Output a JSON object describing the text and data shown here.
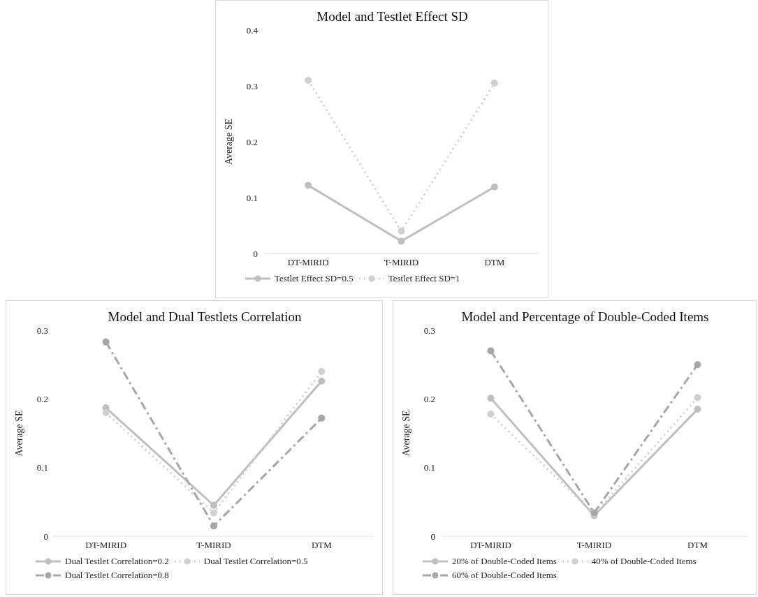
{
  "chart_data": [
    {
      "type": "line",
      "title": "Model and Testlet Effect SD",
      "ylabel": "Average SE",
      "categories": [
        "DT-MIRID",
        "T-MIRID",
        "DTM"
      ],
      "ylim": [
        0,
        0.4
      ],
      "yticks": [
        0,
        0.1,
        0.2,
        0.3,
        0.4
      ],
      "legend": "bottom",
      "marker": "circle",
      "series": [
        {
          "name": "Testlet Effect SD=0.5",
          "color": "#bfbfbf",
          "line_style": "solid",
          "values": [
            0.122,
            0.022,
            0.119
          ]
        },
        {
          "name": "Testlet Effect SD=1",
          "color": "#d0d0d0",
          "line_style": "dotted",
          "values": [
            0.31,
            0.04,
            0.305
          ]
        }
      ]
    },
    {
      "type": "line",
      "title": "Model and Dual Testlets Correlation",
      "ylabel": "Average SE",
      "categories": [
        "DT-MIRID",
        "T-MIRID",
        "DTM"
      ],
      "ylim": [
        0,
        0.3
      ],
      "yticks": [
        0,
        0.1,
        0.2,
        0.3
      ],
      "legend": "bottom",
      "marker": "circle",
      "series": [
        {
          "name": "Dual Testlet Correlation=0.2",
          "color": "#bfbfbf",
          "line_style": "solid",
          "values": [
            0.187,
            0.045,
            0.226
          ]
        },
        {
          "name": "Dual Testlet Correlation=0.5",
          "color": "#d0d0d0",
          "line_style": "dotted",
          "values": [
            0.18,
            0.034,
            0.24
          ]
        },
        {
          "name": "Dual Testlet Correlation=0.8",
          "color": "#a6a6a6",
          "line_style": "dashed",
          "values": [
            0.283,
            0.015,
            0.172
          ]
        }
      ]
    },
    {
      "type": "line",
      "title": "Model and Percentage of Double-Coded Items",
      "ylabel": "Average SE",
      "categories": [
        "DT-MIRID",
        "T-MIRID",
        "DTM"
      ],
      "ylim": [
        0,
        0.3
      ],
      "yticks": [
        0,
        0.1,
        0.2,
        0.3
      ],
      "legend": "bottom",
      "marker": "circle",
      "series": [
        {
          "name": "20% of Double-Coded Items",
          "color": "#bfbfbf",
          "line_style": "solid",
          "values": [
            0.201,
            0.03,
            0.185
          ]
        },
        {
          "name": "40% of Double-Coded Items",
          "color": "#d0d0d0",
          "line_style": "dotted",
          "values": [
            0.178,
            0.032,
            0.202
          ]
        },
        {
          "name": "60% of Double-Coded Items",
          "color": "#a6a6a6",
          "line_style": "dashed",
          "values": [
            0.27,
            0.034,
            0.25
          ]
        }
      ]
    }
  ]
}
